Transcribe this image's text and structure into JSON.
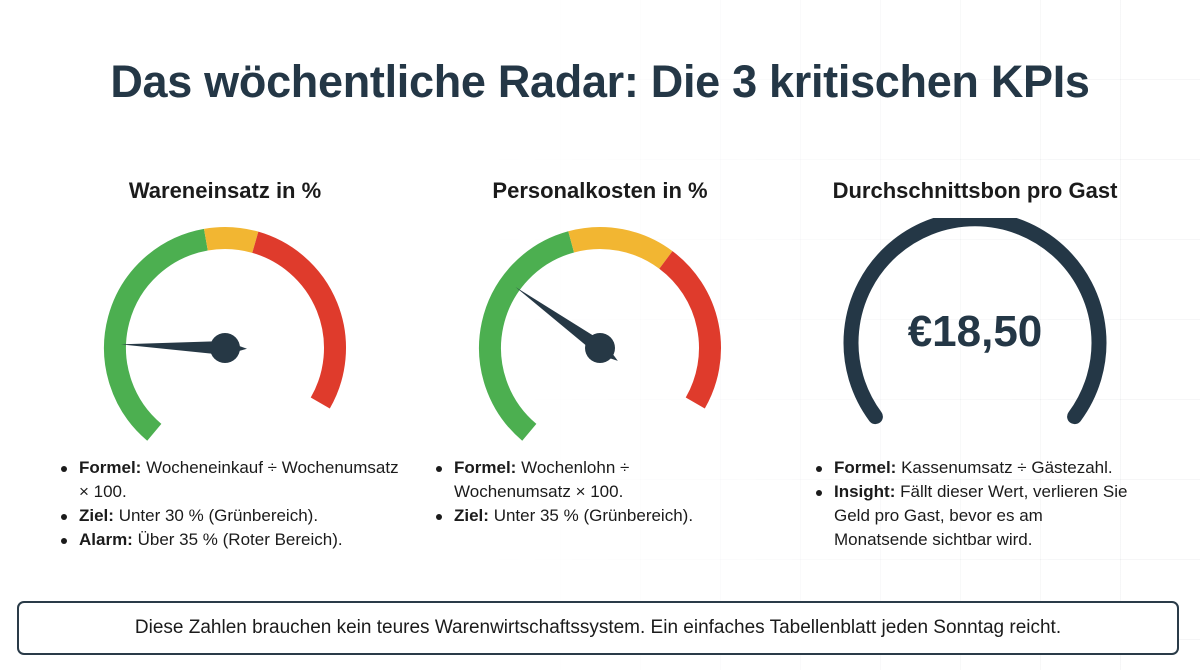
{
  "title": "Das wöchentliche Radar: Die 3 kritischen KPIs",
  "kpis": [
    {
      "title": "Wareneinsatz in %",
      "gauge": {
        "zones": [
          {
            "color": "#4caf50",
            "from": 0.0,
            "to": 0.5
          },
          {
            "color": "#f2b632",
            "from": 0.5,
            "to": 0.6
          },
          {
            "color": "#df3b2c",
            "from": 0.6,
            "to": 1.0
          }
        ],
        "needle_level": 0.2
      },
      "bullets": [
        {
          "label": "Formel:",
          "text": "Wocheneinkauf ÷ Wochenumsatz × 100."
        },
        {
          "label": "Ziel:",
          "text": "Unter 30 % (Grünbereich)."
        },
        {
          "label": "Alarm:",
          "text": "Über 35 % (Roter Bereich)."
        }
      ]
    },
    {
      "title": "Personalkosten in %",
      "gauge": {
        "zones": [
          {
            "color": "#4caf50",
            "from": 0.0,
            "to": 0.48
          },
          {
            "color": "#f2b632",
            "from": 0.48,
            "to": 0.68
          },
          {
            "color": "#df3b2c",
            "from": 0.68,
            "to": 1.0
          }
        ],
        "needle_level": 0.33
      },
      "bullets": [
        {
          "label": "Formel:",
          "text": "Wochenlohn ÷ Wochenumsatz × 100."
        },
        {
          "label": "Ziel:",
          "text": "Unter 35 % (Grünbereich)."
        }
      ]
    },
    {
      "title": "Durchschnittsbon pro Gast",
      "gauge": {
        "color": "#243746",
        "value": "€18,50"
      },
      "bullets": [
        {
          "label": "Formel:",
          "text": "Kassenumsatz ÷ Gästezahl."
        },
        {
          "label": "Insight:",
          "text": "Fällt dieser Wert, verlieren Sie Geld pro Gast, bevor es am Monatsende sichtbar wird."
        }
      ]
    }
  ],
  "footer": "Diese Zahlen brauchen kein teures Warenwirtschaftssystem. Ein einfaches Tabellenblatt jeden Sonntag reicht.",
  "colors": {
    "title": "#243746",
    "needle": "#263845",
    "border": "#2a3b48"
  }
}
